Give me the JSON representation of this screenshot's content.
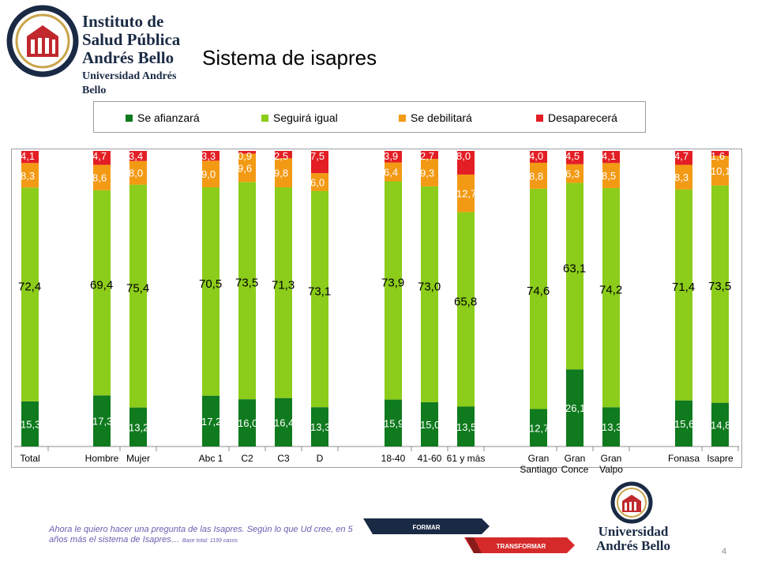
{
  "logo": {
    "line1": "Instituto de",
    "line2": "Salud Pública",
    "line3": "Andrés Bello",
    "line4": "Universidad Andrés Bello"
  },
  "title": "Sistema de isapres",
  "colors": {
    "afianzara": "#0f7a1e",
    "seguira": "#8ccc1a",
    "debilitara": "#f39a14",
    "desaparecera": "#e31e24"
  },
  "chart_data": {
    "type": "bar",
    "stacked": true,
    "normalized_percent": true,
    "legend_position": "top",
    "grid": false,
    "categories": [
      "Total",
      "Hombre",
      "Mujer",
      "Abc 1",
      "C2",
      "C3",
      "D",
      "18-40",
      "41-60",
      "61 y más",
      "Gran Santiago",
      "Gran Conce",
      "Gran Valpo",
      "Fonasa",
      "Isapre"
    ],
    "series": [
      {
        "name": "Se afianzará",
        "values": [
          15.3,
          17.3,
          13.2,
          17.2,
          16.0,
          16.4,
          13.3,
          15.9,
          15.0,
          13.5,
          12.7,
          26.1,
          13.3,
          15.6,
          14.8
        ]
      },
      {
        "name": "Seguirá igual",
        "values": [
          72.4,
          69.4,
          75.4,
          70.5,
          73.5,
          71.3,
          73.1,
          73.9,
          73.0,
          65.8,
          74.6,
          63.1,
          74.2,
          71.4,
          73.5
        ]
      },
      {
        "name": "Se debilitará",
        "values": [
          8.3,
          8.6,
          8.0,
          9.0,
          9.6,
          9.8,
          6.0,
          6.4,
          9.3,
          12.7,
          8.8,
          6.3,
          8.5,
          8.3,
          10.1
        ]
      },
      {
        "name": "Desaparecerá",
        "values": [
          4.1,
          4.7,
          3.4,
          3.3,
          0.9,
          2.5,
          7.5,
          3.9,
          2.7,
          8.0,
          4.0,
          4.5,
          4.1,
          4.7,
          1.6
        ]
      }
    ],
    "value_labels": [
      [
        "15,3",
        "17,3",
        "13,2",
        "17,2",
        "16,0",
        "16,4",
        "13,3",
        "15,9",
        "15,0",
        "13,5",
        "12,7",
        "26,1",
        "13,3",
        "15,6",
        "14,8"
      ],
      [
        "72,4",
        "69,4",
        "75,4",
        "70,5",
        "73,5",
        "71,3",
        "73,1",
        "73,9",
        "73,0",
        "65,8",
        "74,6",
        "63,1",
        "74,2",
        "71,4",
        "73,5"
      ],
      [
        "8,3",
        "8,6",
        "8,0",
        "9,0",
        "9,6",
        "9,8",
        "6,0",
        "6,4",
        "9,3",
        "12,7",
        "8,8",
        "6,3",
        "8,5",
        "8,3",
        "10,1"
      ],
      [
        "4,1",
        "4,7",
        "3,4",
        "3,3",
        "0,9",
        "2,5",
        "7,5",
        "3,9",
        "2,7",
        "8,0",
        "4,0",
        "4,5",
        "4,1",
        "4,7",
        "1,6"
      ]
    ],
    "axis_labels": [
      [
        "Total"
      ],
      [
        "Hombre"
      ],
      [
        "Mujer"
      ],
      [
        "Abc 1"
      ],
      [
        "C2"
      ],
      [
        "C3"
      ],
      [
        "D"
      ],
      [
        "18-40"
      ],
      [
        "41-60"
      ],
      [
        "61 y más"
      ],
      [
        "Gran",
        "Santiago"
      ],
      [
        "Gran",
        "Conce"
      ],
      [
        "Gran",
        "Valpo"
      ],
      [
        "Fonasa"
      ],
      [
        "Isapre"
      ]
    ]
  },
  "footnote": {
    "text": "Ahora le quiero hacer una pregunta de las Isapres. Según lo que Ud cree, en 5 años más el sistema de Isapres…",
    "base": "Base total: 1199 casos"
  },
  "banner": {
    "formar": "FORMAR",
    "transformar": "TRANSFORMAR"
  },
  "bottom_logo": {
    "line1": "Universidad",
    "line2": "Andrés Bello"
  },
  "page_number": "4"
}
